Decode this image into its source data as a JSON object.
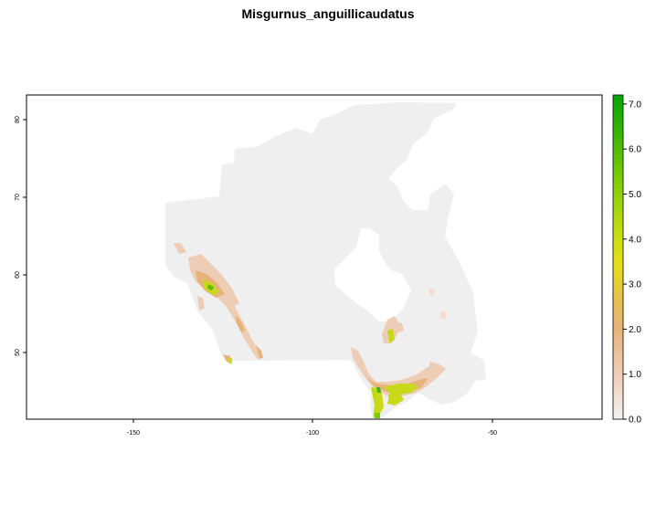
{
  "title": "Misgurnus_anguillicaudatus",
  "map": {
    "x_ticks": [
      {
        "value": -150,
        "label": "-150"
      },
      {
        "value": -100,
        "label": "-100"
      },
      {
        "value": -50,
        "label": "-50"
      }
    ],
    "y_ticks": [
      {
        "value": 50,
        "label": "50"
      },
      {
        "value": 60,
        "label": "60"
      },
      {
        "value": 70,
        "label": "70"
      },
      {
        "value": 80,
        "label": "80"
      }
    ],
    "xlim": [
      -180,
      -23
    ],
    "ylim": [
      41.5,
      83.5
    ],
    "background_color": "#f0efef",
    "legend": {
      "range": [
        0,
        7.2
      ],
      "labels": [
        "0.0",
        "1.0",
        "2.0",
        "3.0",
        "4.0",
        "5.0",
        "6.0",
        "7.0"
      ],
      "colors": [
        "#f2f2f2",
        "#eecdb6",
        "#e6b47a",
        "#e5c24a",
        "#e6e015",
        "#b9dc0d",
        "#7ccb08",
        "#3cb505",
        "#00a600"
      ]
    }
  }
}
